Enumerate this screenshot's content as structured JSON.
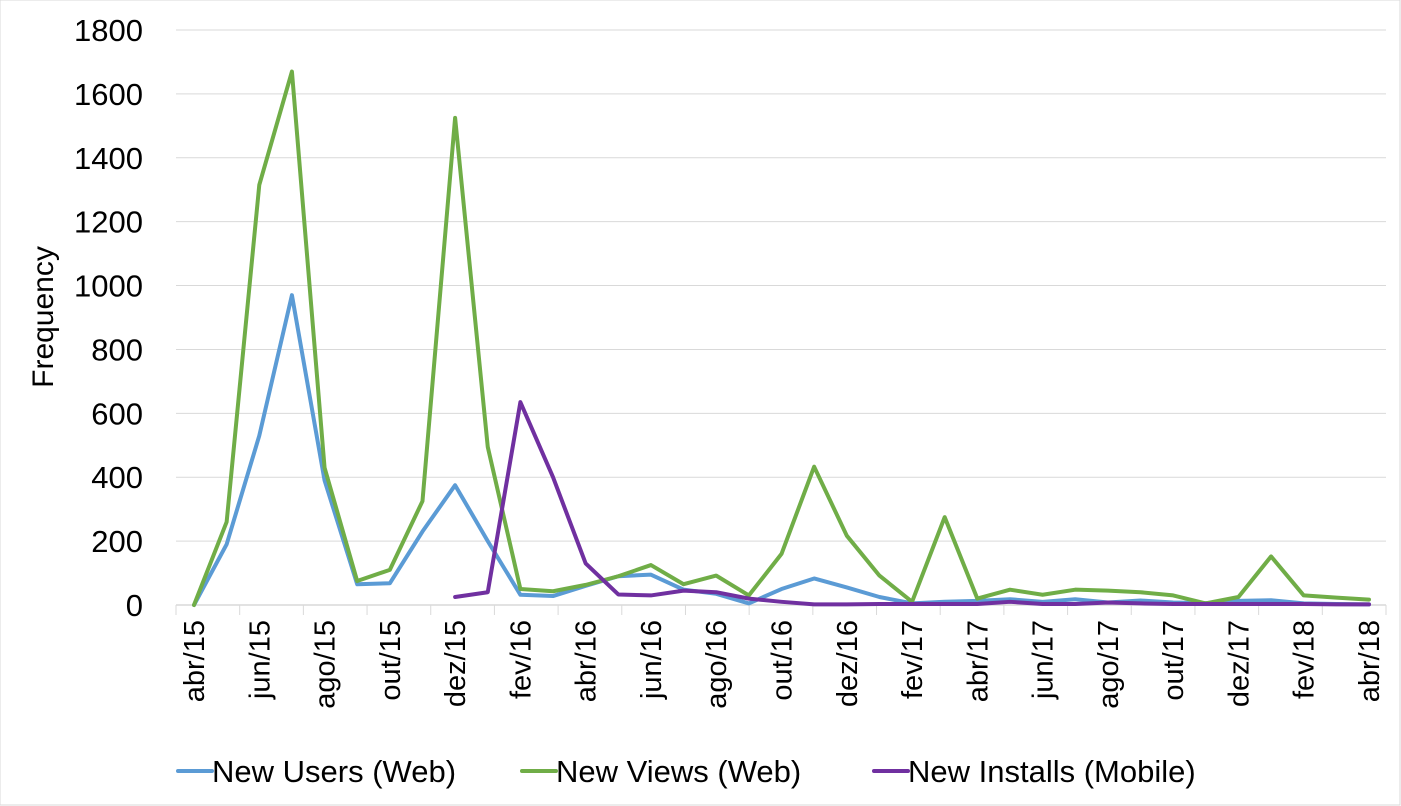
{
  "chart_data": {
    "type": "line",
    "title": "",
    "xlabel": "",
    "ylabel": "Frequency",
    "ylim": [
      0,
      1800
    ],
    "yticks": [
      0,
      200,
      400,
      600,
      800,
      1000,
      1200,
      1400,
      1600,
      1800
    ],
    "x_start": "abr/15",
    "x_end": "abr/18",
    "x_tick_labels": [
      "abr/15",
      "jun/15",
      "ago/15",
      "out/15",
      "dez/15",
      "fev/16",
      "abr/16",
      "jun/16",
      "ago/16",
      "out/16",
      "dez/16",
      "fev/17",
      "abr/17",
      "jun/17",
      "ago/17",
      "out/17",
      "dez/17",
      "fev/18",
      "abr/18"
    ],
    "grid": "horizontal",
    "legend_position": "bottom",
    "series": [
      {
        "name": "New Users (Web)",
        "color": "#5B9BD5",
        "values": [
          [
            0,
            0
          ],
          [
            1,
            190
          ],
          [
            2,
            530
          ],
          [
            3,
            970
          ],
          [
            4,
            390
          ],
          [
            5,
            65
          ],
          [
            6,
            68
          ],
          [
            7,
            230
          ],
          [
            8,
            375
          ],
          [
            9,
            200
          ],
          [
            10,
            32
          ],
          [
            11,
            28
          ],
          [
            12,
            60
          ],
          [
            13,
            90
          ],
          [
            14,
            95
          ],
          [
            15,
            48
          ],
          [
            16,
            35
          ],
          [
            17,
            5
          ],
          [
            18,
            50
          ],
          [
            19,
            83
          ],
          [
            20,
            55
          ],
          [
            21,
            25
          ],
          [
            22,
            5
          ],
          [
            23,
            10
          ],
          [
            24,
            13
          ],
          [
            25,
            18
          ],
          [
            26,
            10
          ],
          [
            27,
            18
          ],
          [
            28,
            8
          ],
          [
            29,
            14
          ],
          [
            30,
            8
          ],
          [
            31,
            6
          ],
          [
            32,
            13
          ],
          [
            33,
            15
          ],
          [
            34,
            5
          ],
          [
            35,
            3
          ],
          [
            36,
            2
          ]
        ]
      },
      {
        "name": "New Views (Web)",
        "color": "#70AD47",
        "values": [
          [
            0,
            0
          ],
          [
            1,
            260
          ],
          [
            2,
            1315
          ],
          [
            3,
            1670
          ],
          [
            4,
            430
          ],
          [
            5,
            75
          ],
          [
            6,
            110
          ],
          [
            7,
            325
          ],
          [
            8,
            1525
          ],
          [
            9,
            495
          ],
          [
            10,
            50
          ],
          [
            11,
            43
          ],
          [
            12,
            63
          ],
          [
            13,
            90
          ],
          [
            14,
            125
          ],
          [
            15,
            65
          ],
          [
            16,
            92
          ],
          [
            17,
            30
          ],
          [
            18,
            160
          ],
          [
            19,
            433
          ],
          [
            20,
            217
          ],
          [
            21,
            92
          ],
          [
            22,
            10
          ],
          [
            23,
            275
          ],
          [
            24,
            20
          ],
          [
            25,
            48
          ],
          [
            26,
            32
          ],
          [
            27,
            48
          ],
          [
            28,
            45
          ],
          [
            29,
            40
          ],
          [
            30,
            30
          ],
          [
            31,
            5
          ],
          [
            32,
            25
          ],
          [
            33,
            152
          ],
          [
            34,
            30
          ],
          [
            35,
            23
          ],
          [
            36,
            17
          ]
        ]
      },
      {
        "name": "New Installs (Mobile)",
        "color": "#7030A0",
        "values": [
          [
            8,
            25
          ],
          [
            9,
            40
          ],
          [
            10,
            635
          ],
          [
            11,
            400
          ],
          [
            12,
            130
          ],
          [
            13,
            33
          ],
          [
            14,
            30
          ],
          [
            15,
            45
          ],
          [
            16,
            40
          ],
          [
            17,
            20
          ],
          [
            18,
            10
          ],
          [
            19,
            2
          ],
          [
            20,
            2
          ],
          [
            21,
            3
          ],
          [
            22,
            3
          ],
          [
            23,
            3
          ],
          [
            24,
            3
          ],
          [
            25,
            10
          ],
          [
            26,
            3
          ],
          [
            27,
            3
          ],
          [
            28,
            8
          ],
          [
            29,
            5
          ],
          [
            30,
            3
          ],
          [
            31,
            3
          ],
          [
            32,
            3
          ],
          [
            33,
            3
          ],
          [
            34,
            3
          ],
          [
            35,
            2
          ],
          [
            36,
            2
          ]
        ]
      }
    ]
  }
}
